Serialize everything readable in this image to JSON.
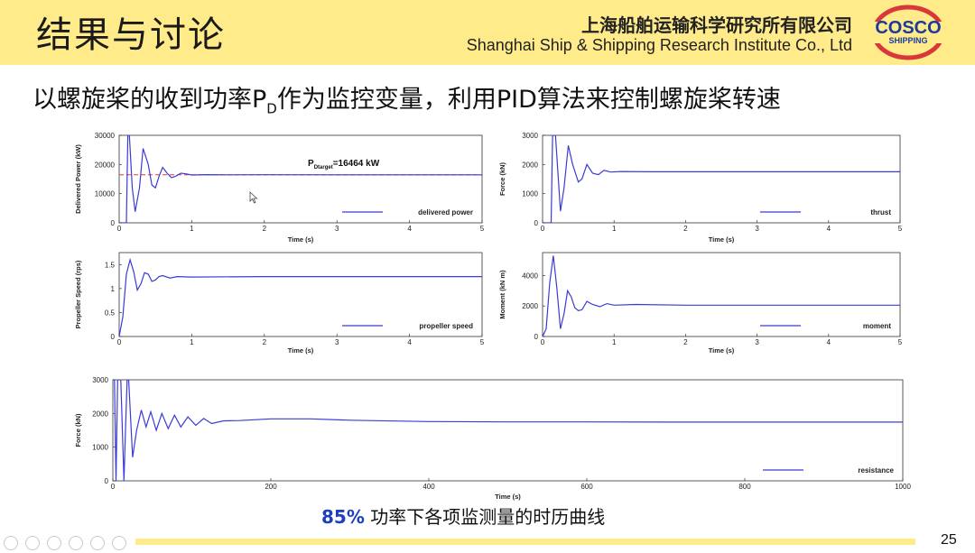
{
  "header": {
    "title": "结果与讨论",
    "org_cn": "上海船舶运输科学研究所有限公司",
    "org_en": "Shanghai Ship & Shipping Research Institute Co., Ltd",
    "logo_line1": "COSCO",
    "logo_line2": "SHIPPING"
  },
  "subtitle": {
    "pre": "以螺旋桨的收到功率P",
    "sub": "D",
    "post": "作为监控变量，利用PID算法来控制螺旋桨转速"
  },
  "caption": {
    "pct": "85%",
    "text": " 功率下各项监测量的时历曲线"
  },
  "page_number": "25",
  "colors": {
    "accent": "#ffeb8a",
    "series": "#3b3bd6",
    "target": "#e03a3a",
    "caption_pct": "#1f3fbf"
  },
  "toolbar_icons": [
    "prev-icon",
    "next-icon",
    "pen-icon",
    "slides-icon",
    "zoom-icon",
    "more-icon"
  ],
  "chart_data": [
    {
      "type": "line",
      "id": "delivered_power",
      "ylabel": "Delivered Power (kW)",
      "xlabel": "Time (s)",
      "xlim": [
        0,
        5
      ],
      "ylim": [
        0,
        30000
      ],
      "xticks": [
        "0",
        "1",
        "2",
        "3",
        "4",
        "5"
      ],
      "yticks": [
        "0",
        "10000",
        "20000",
        "30000"
      ],
      "series": [
        {
          "name": "delivered power",
          "x": [
            0,
            0.1,
            0.12,
            0.14,
            0.18,
            0.22,
            0.28,
            0.33,
            0.4,
            0.45,
            0.5,
            0.55,
            0.6,
            0.66,
            0.72,
            0.78,
            0.85,
            0.92,
            1,
            1.2,
            1.5,
            2,
            3,
            4,
            5
          ],
          "y": [
            0,
            0,
            30000,
            30000,
            12000,
            3800,
            12000,
            25500,
            20000,
            13000,
            12000,
            16000,
            19000,
            17000,
            15500,
            16000,
            17000,
            16800,
            16400,
            16500,
            16460,
            16470,
            16464,
            16464,
            16464
          ]
        }
      ],
      "target": {
        "value": 16464,
        "label_main": "P",
        "label_sub": "Dtarget",
        "label_value": "=16464 kW"
      }
    },
    {
      "type": "line",
      "id": "thrust",
      "ylabel": "Force (kN)",
      "xlabel": "Time (s)",
      "xlim": [
        0,
        5
      ],
      "ylim": [
        0,
        3000
      ],
      "xticks": [
        "0",
        "1",
        "2",
        "3",
        "4",
        "5"
      ],
      "yticks": [
        "0",
        "1000",
        "2000",
        "3000"
      ],
      "series": [
        {
          "name": "thrust",
          "x": [
            0,
            0.12,
            0.14,
            0.18,
            0.25,
            0.3,
            0.36,
            0.42,
            0.5,
            0.55,
            0.62,
            0.7,
            0.78,
            0.86,
            0.95,
            1.1,
            1.5,
            2,
            3,
            4,
            5
          ],
          "y": [
            0,
            0,
            3000,
            3000,
            400,
            1200,
            2650,
            2000,
            1400,
            1500,
            2000,
            1700,
            1650,
            1800,
            1740,
            1760,
            1750,
            1750,
            1750,
            1750,
            1750
          ]
        }
      ]
    },
    {
      "type": "line",
      "id": "propeller_speed",
      "ylabel": "Propeller Speed (rps)",
      "xlabel": "Time (s)",
      "xlim": [
        0,
        5
      ],
      "ylim": [
        0,
        1.75
      ],
      "xticks": [
        "0",
        "1",
        "2",
        "3",
        "4",
        "5"
      ],
      "yticks": [
        "0",
        "0.5",
        "1",
        "1.5"
      ],
      "series": [
        {
          "name": "propeller speed",
          "x": [
            0,
            0.05,
            0.1,
            0.15,
            0.2,
            0.25,
            0.3,
            0.35,
            0.4,
            0.45,
            0.5,
            0.55,
            0.6,
            0.7,
            0.8,
            1,
            2,
            3,
            4,
            5
          ],
          "y": [
            0,
            0.4,
            1.3,
            1.6,
            1.35,
            0.97,
            1.1,
            1.33,
            1.3,
            1.15,
            1.18,
            1.25,
            1.27,
            1.22,
            1.25,
            1.24,
            1.25,
            1.25,
            1.25,
            1.25
          ]
        }
      ]
    },
    {
      "type": "line",
      "id": "moment",
      "ylabel": "Moment (kN m)",
      "xlabel": "Time (s)",
      "xlim": [
        0,
        5
      ],
      "ylim": [
        0,
        5500
      ],
      "xticks": [
        "0",
        "1",
        "2",
        "3",
        "4",
        "5"
      ],
      "yticks": [
        "0",
        "2000",
        "4000"
      ],
      "series": [
        {
          "name": "moment",
          "x": [
            0,
            0.05,
            0.1,
            0.15,
            0.2,
            0.25,
            0.3,
            0.35,
            0.4,
            0.45,
            0.5,
            0.55,
            0.62,
            0.7,
            0.8,
            0.9,
            1,
            1.3,
            2,
            3,
            4,
            5
          ],
          "y": [
            0,
            500,
            3500,
            5300,
            3200,
            500,
            1500,
            3000,
            2600,
            1900,
            1700,
            1750,
            2300,
            2100,
            1950,
            2150,
            2050,
            2100,
            2050,
            2050,
            2050,
            2050
          ]
        }
      ]
    },
    {
      "type": "line",
      "id": "resistance",
      "ylabel": "Force (kN)",
      "xlabel": "Time (s)",
      "xlim": [
        0,
        1000
      ],
      "ylim": [
        0,
        3000
      ],
      "xticks": [
        "0",
        "200",
        "400",
        "600",
        "800",
        "1000"
      ],
      "yticks": [
        "0",
        "1000",
        "2000",
        "3000"
      ],
      "series": [
        {
          "name": "resistance",
          "x": [
            0,
            2,
            4,
            6,
            10,
            14,
            16,
            18,
            20,
            25,
            30,
            36,
            42,
            48,
            55,
            62,
            70,
            78,
            86,
            95,
            105,
            115,
            125,
            140,
            160,
            200,
            250,
            300,
            400,
            500,
            600,
            700,
            800,
            900,
            1000
          ],
          "y": [
            3000,
            3000,
            0,
            3000,
            3000,
            0,
            1500,
            3000,
            3000,
            700,
            1500,
            2100,
            1600,
            2050,
            1500,
            2000,
            1550,
            1950,
            1600,
            1900,
            1650,
            1850,
            1700,
            1780,
            1790,
            1840,
            1840,
            1800,
            1760,
            1750,
            1750,
            1745,
            1745,
            1745,
            1745
          ]
        }
      ]
    }
  ]
}
